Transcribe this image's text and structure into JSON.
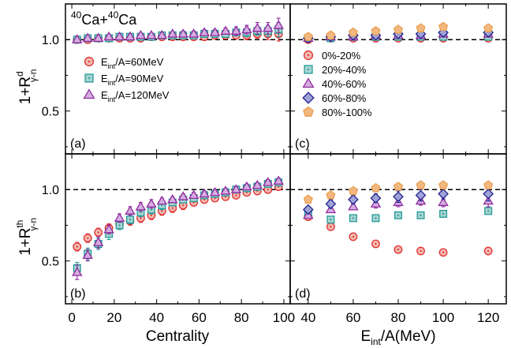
{
  "chart_data": [
    {
      "panel": "(a)",
      "type": "scatter",
      "title": "40Ca+40Ca",
      "title_parts": [
        "40",
        "Ca+",
        "40",
        "Ca"
      ],
      "ylabel": "1+R^d_{γ-n}",
      "ylabel_parts": {
        "main": "1+R",
        "sup": "d",
        "sub": "γ-n"
      },
      "xlabel": "",
      "xlim": [
        -3,
        103
      ],
      "ylim": [
        0.2,
        1.25
      ],
      "reference_line": 1.0,
      "legend_position": "left",
      "series": [
        {
          "name": "E_int/A=60MeV",
          "legend_parts": {
            "a": "E",
            "sub": "int",
            "b": "/A=60MeV"
          },
          "marker": "circle-dot",
          "color": "#e03030",
          "fill": "#f2b8b0",
          "x": [
            2.5,
            7.5,
            12.5,
            17.5,
            22.5,
            27.5,
            32.5,
            37.5,
            42.5,
            47.5,
            52.5,
            57.5,
            62.5,
            67.5,
            72.5,
            77.5,
            82.5,
            87.5,
            92.5,
            97.5
          ],
          "y": [
            1.0,
            1.0,
            1.01,
            1.01,
            1.01,
            1.01,
            1.01,
            1.02,
            1.02,
            1.02,
            1.02,
            1.02,
            1.02,
            1.03,
            1.03,
            1.03,
            1.03,
            1.04,
            1.04,
            1.04
          ],
          "err": [
            0.01,
            0.01,
            0.01,
            0.01,
            0.01,
            0.01,
            0.01,
            0.01,
            0.01,
            0.01,
            0.01,
            0.01,
            0.01,
            0.02,
            0.02,
            0.02,
            0.03,
            0.03,
            0.04,
            0.05
          ]
        },
        {
          "name": "E_int/A=90MeV",
          "legend_parts": {
            "a": "E",
            "sub": "int",
            "b": "/A=90MeV"
          },
          "marker": "square-dot",
          "color": "#239a9a",
          "fill": "#a8d4d0",
          "x": [
            2.5,
            7.5,
            12.5,
            17.5,
            22.5,
            27.5,
            32.5,
            37.5,
            42.5,
            47.5,
            52.5,
            57.5,
            62.5,
            67.5,
            72.5,
            77.5,
            82.5,
            87.5,
            92.5,
            97.5
          ],
          "y": [
            1.0,
            1.01,
            1.01,
            1.01,
            1.02,
            1.02,
            1.02,
            1.02,
            1.03,
            1.03,
            1.03,
            1.03,
            1.04,
            1.04,
            1.04,
            1.05,
            1.05,
            1.06,
            1.06,
            1.07
          ],
          "err": [
            0.01,
            0.01,
            0.01,
            0.01,
            0.01,
            0.01,
            0.01,
            0.01,
            0.01,
            0.01,
            0.01,
            0.01,
            0.02,
            0.02,
            0.02,
            0.02,
            0.03,
            0.03,
            0.04,
            0.05
          ]
        },
        {
          "name": "E_int/A=120MeV",
          "legend_parts": {
            "a": "E",
            "sub": "int",
            "b": "/A=120MeV"
          },
          "marker": "triangle",
          "color": "#8e2a9e",
          "fill": "#d6aee0",
          "x": [
            2.5,
            7.5,
            12.5,
            17.5,
            22.5,
            27.5,
            32.5,
            37.5,
            42.5,
            47.5,
            52.5,
            57.5,
            62.5,
            67.5,
            72.5,
            77.5,
            82.5,
            87.5,
            92.5,
            97.5
          ],
          "y": [
            1.0,
            1.01,
            1.01,
            1.02,
            1.02,
            1.02,
            1.03,
            1.03,
            1.03,
            1.04,
            1.04,
            1.04,
            1.05,
            1.05,
            1.06,
            1.06,
            1.07,
            1.08,
            1.08,
            1.1
          ],
          "err": [
            0.01,
            0.01,
            0.01,
            0.01,
            0.01,
            0.01,
            0.01,
            0.01,
            0.01,
            0.01,
            0.02,
            0.02,
            0.02,
            0.02,
            0.02,
            0.03,
            0.03,
            0.04,
            0.04,
            0.05
          ]
        }
      ]
    },
    {
      "panel": "(c)",
      "type": "scatter",
      "xlabel": "",
      "xlim": [
        32,
        128
      ],
      "ylim": [
        0.2,
        1.25
      ],
      "reference_line": 1.0,
      "legend_position": "left",
      "series": [
        {
          "name": "0%-20%",
          "marker": "circle-dot",
          "color": "#e03030",
          "fill": "#f2b8b0",
          "x": [
            40,
            50,
            60,
            70,
            80,
            90,
            100,
            120
          ],
          "y": [
            1.0,
            1.01,
            1.01,
            1.01,
            1.01,
            1.01,
            1.01,
            1.01
          ],
          "err": [
            0.005,
            0.005,
            0.005,
            0.005,
            0.005,
            0.005,
            0.005,
            0.005
          ]
        },
        {
          "name": "20%-40%",
          "marker": "square-dot",
          "color": "#239a9a",
          "fill": "#a8d4d0",
          "x": [
            40,
            50,
            60,
            70,
            80,
            90,
            100,
            120
          ],
          "y": [
            1.01,
            1.01,
            1.02,
            1.02,
            1.02,
            1.02,
            1.02,
            1.02
          ],
          "err": [
            0.005,
            0.005,
            0.005,
            0.005,
            0.005,
            0.005,
            0.005,
            0.005
          ]
        },
        {
          "name": "40%-60%",
          "marker": "triangle",
          "color": "#8e2a9e",
          "fill": "#d6aee0",
          "x": [
            40,
            50,
            60,
            70,
            80,
            90,
            100,
            120
          ],
          "y": [
            1.01,
            1.02,
            1.02,
            1.03,
            1.03,
            1.03,
            1.04,
            1.04
          ],
          "err": [
            0.005,
            0.005,
            0.01,
            0.01,
            0.01,
            0.01,
            0.01,
            0.01
          ]
        },
        {
          "name": "60%-80%",
          "marker": "diamond",
          "color": "#22228e",
          "fill": "#9ea2d6",
          "x": [
            40,
            50,
            60,
            70,
            80,
            90,
            100,
            120
          ],
          "y": [
            1.01,
            1.02,
            1.03,
            1.03,
            1.04,
            1.04,
            1.05,
            1.05
          ],
          "err": [
            0.005,
            0.01,
            0.01,
            0.01,
            0.01,
            0.01,
            0.02,
            0.02
          ]
        },
        {
          "name": "80%-100%",
          "marker": "pentagon",
          "color": "#e8a050",
          "fill": "#f3b880",
          "x": [
            40,
            50,
            60,
            70,
            80,
            90,
            100,
            120
          ],
          "y": [
            1.02,
            1.03,
            1.05,
            1.06,
            1.07,
            1.08,
            1.09,
            1.08
          ],
          "err": [
            0.01,
            0.01,
            0.01,
            0.01,
            0.02,
            0.02,
            0.02,
            0.02
          ]
        }
      ]
    },
    {
      "panel": "(b)",
      "type": "scatter",
      "ylabel": "1+R^th_{γ-n}",
      "ylabel_parts": {
        "main": "1+R",
        "sup": "th",
        "sub": "γ-n"
      },
      "xlabel": "Centrality",
      "xticks": [
        0,
        20,
        40,
        60,
        80,
        100
      ],
      "xlim": [
        -3,
        103
      ],
      "ylim": [
        0.2,
        1.25
      ],
      "reference_line": 1.0,
      "series": [
        {
          "name": "E_int/A=60MeV",
          "marker": "circle-dot",
          "color": "#e03030",
          "fill": "#f2b8b0",
          "x": [
            2.5,
            7.5,
            12.5,
            17.5,
            22.5,
            27.5,
            32.5,
            37.5,
            42.5,
            47.5,
            52.5,
            57.5,
            62.5,
            67.5,
            72.5,
            77.5,
            82.5,
            87.5,
            92.5,
            97.5
          ],
          "y": [
            0.6,
            0.66,
            0.7,
            0.73,
            0.76,
            0.78,
            0.8,
            0.82,
            0.85,
            0.87,
            0.89,
            0.91,
            0.93,
            0.94,
            0.95,
            0.96,
            0.98,
            0.99,
            1.0,
            1.02
          ],
          "err": [
            0.03,
            0.03,
            0.03,
            0.03,
            0.03,
            0.03,
            0.03,
            0.03,
            0.03,
            0.03,
            0.03,
            0.02,
            0.02,
            0.02,
            0.02,
            0.02,
            0.02,
            0.02,
            0.02,
            0.02
          ]
        },
        {
          "name": "E_int/A=90MeV",
          "marker": "square-dot",
          "color": "#239a9a",
          "fill": "#a8d4d0",
          "x": [
            2.5,
            7.5,
            12.5,
            17.5,
            22.5,
            27.5,
            32.5,
            37.5,
            42.5,
            47.5,
            52.5,
            57.5,
            62.5,
            67.5,
            72.5,
            77.5,
            82.5,
            87.5,
            92.5,
            97.5
          ],
          "y": [
            0.45,
            0.55,
            0.62,
            0.69,
            0.75,
            0.79,
            0.84,
            0.86,
            0.89,
            0.91,
            0.93,
            0.94,
            0.96,
            0.97,
            0.98,
            1.0,
            1.01,
            1.02,
            1.04,
            1.05
          ],
          "err": [
            0.04,
            0.04,
            0.04,
            0.04,
            0.03,
            0.03,
            0.03,
            0.03,
            0.03,
            0.02,
            0.02,
            0.02,
            0.02,
            0.02,
            0.02,
            0.02,
            0.02,
            0.02,
            0.02,
            0.02
          ]
        },
        {
          "name": "E_int/A=120MeV",
          "marker": "triangle",
          "color": "#8e2a9e",
          "fill": "#d6aee0",
          "x": [
            2.5,
            7.5,
            12.5,
            17.5,
            22.5,
            27.5,
            32.5,
            37.5,
            42.5,
            47.5,
            52.5,
            57.5,
            62.5,
            67.5,
            72.5,
            77.5,
            82.5,
            87.5,
            92.5,
            97.5
          ],
          "y": [
            0.42,
            0.54,
            0.63,
            0.72,
            0.8,
            0.85,
            0.88,
            0.9,
            0.92,
            0.93,
            0.95,
            0.96,
            0.97,
            0.98,
            0.99,
            1.0,
            1.02,
            1.03,
            1.05,
            1.06
          ],
          "err": [
            0.05,
            0.04,
            0.04,
            0.03,
            0.03,
            0.03,
            0.03,
            0.03,
            0.02,
            0.02,
            0.02,
            0.02,
            0.02,
            0.02,
            0.02,
            0.02,
            0.02,
            0.02,
            0.02,
            0.02
          ]
        }
      ]
    },
    {
      "panel": "(d)",
      "type": "scatter",
      "xlabel": "E_int/A(MeV)",
      "xlabel_parts": {
        "a": "E",
        "sub": "int",
        "b": "/A(MeV)"
      },
      "xticks": [
        40,
        60,
        80,
        100,
        120
      ],
      "xlim": [
        32,
        128
      ],
      "ylim": [
        0.2,
        1.25
      ],
      "reference_line": 1.0,
      "series": [
        {
          "name": "0%-20%",
          "marker": "circle-dot",
          "color": "#e03030",
          "fill": "#f2b8b0",
          "x": [
            40,
            50,
            60,
            70,
            80,
            90,
            100,
            120
          ],
          "y": [
            0.81,
            0.74,
            0.67,
            0.62,
            0.58,
            0.57,
            0.56,
            0.57
          ],
          "err": [
            0.01,
            0.01,
            0.01,
            0.01,
            0.01,
            0.01,
            0.01,
            0.01
          ]
        },
        {
          "name": "20%-40%",
          "marker": "square-dot",
          "color": "#239a9a",
          "fill": "#a8d4d0",
          "x": [
            40,
            50,
            60,
            70,
            80,
            90,
            100,
            120
          ],
          "y": [
            0.83,
            0.79,
            0.8,
            0.8,
            0.82,
            0.82,
            0.83,
            0.85
          ],
          "err": [
            0.01,
            0.01,
            0.01,
            0.01,
            0.01,
            0.01,
            0.01,
            0.01
          ]
        },
        {
          "name": "40%-60%",
          "marker": "triangle",
          "color": "#8e2a9e",
          "fill": "#d6aee0",
          "x": [
            40,
            50,
            60,
            70,
            80,
            90,
            100,
            120
          ],
          "y": [
            0.82,
            0.86,
            0.88,
            0.9,
            0.91,
            0.92,
            0.91,
            0.92
          ],
          "err": [
            0.02,
            0.02,
            0.02,
            0.03,
            0.03,
            0.03,
            0.03,
            0.04
          ]
        },
        {
          "name": "60%-80%",
          "marker": "diamond",
          "color": "#22228e",
          "fill": "#9ea2d6",
          "x": [
            40,
            50,
            60,
            70,
            80,
            90,
            100,
            120
          ],
          "y": [
            0.86,
            0.9,
            0.93,
            0.94,
            0.95,
            0.96,
            0.97,
            0.97
          ],
          "err": [
            0.02,
            0.03,
            0.03,
            0.03,
            0.04,
            0.04,
            0.04,
            0.05
          ]
        },
        {
          "name": "80%-100%",
          "marker": "pentagon",
          "color": "#e8a050",
          "fill": "#f3b880",
          "x": [
            40,
            50,
            60,
            70,
            80,
            90,
            100,
            120
          ],
          "y": [
            0.93,
            0.96,
            0.99,
            1.01,
            1.02,
            1.03,
            1.03,
            1.03
          ],
          "err": [
            0.01,
            0.01,
            0.01,
            0.01,
            0.01,
            0.01,
            0.01,
            0.01
          ]
        }
      ]
    }
  ],
  "y_ticks": [
    0.5,
    1.0
  ],
  "y_tick_labels": [
    "0.5",
    "1.0"
  ]
}
